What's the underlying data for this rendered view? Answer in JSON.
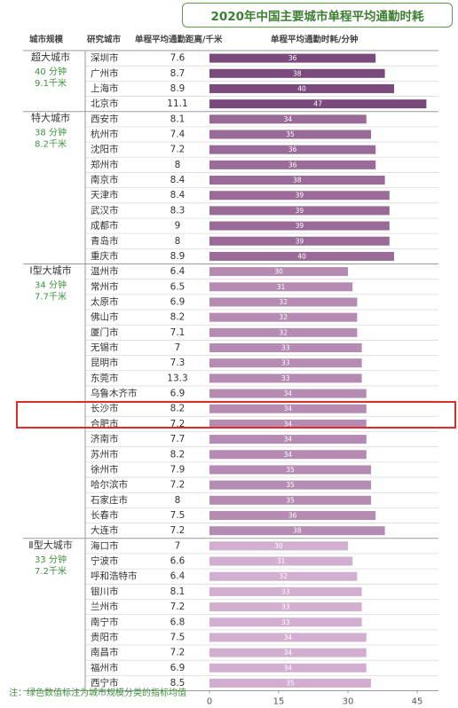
{
  "chart_data": {
    "type": "bar",
    "title": "2020年中国主要城市单程平均通勤时耗",
    "column_headers": {
      "tier": "城市规模",
      "city": "研究城市",
      "distance": "单程平均通勤距离/千米",
      "time": "单程平均通勤时耗/分钟"
    },
    "xlabel": "单程平均通勤时耗/分钟",
    "xlim": [
      0,
      50
    ],
    "xticks": [
      "0",
      "15",
      "30",
      "45"
    ],
    "note": "注：绿色数值标注为城市规模分类的指标均值",
    "highlighted_city": "合肥市",
    "groups": [
      {
        "name": "超大城市",
        "avg_time": "40 分钟",
        "avg_distance": "9.1千米",
        "color": "#7b4a7d",
        "cities": [
          {
            "city": "深圳市",
            "distance": "7.6",
            "time": 36
          },
          {
            "city": "广州市",
            "distance": "8.7",
            "time": 38
          },
          {
            "city": "上海市",
            "distance": "8.9",
            "time": 40
          },
          {
            "city": "北京市",
            "distance": "11.1",
            "time": 47
          }
        ]
      },
      {
        "name": "特大城市",
        "avg_time": "38 分钟",
        "avg_distance": "8.2千米",
        "color": "#9a6a98",
        "cities": [
          {
            "city": "西安市",
            "distance": "8.1",
            "time": 34
          },
          {
            "city": "杭州市",
            "distance": "7.4",
            "time": 35
          },
          {
            "city": "沈阳市",
            "distance": "7.2",
            "time": 36
          },
          {
            "city": "郑州市",
            "distance": "8",
            "time": 36
          },
          {
            "city": "南京市",
            "distance": "8.4",
            "time": 38
          },
          {
            "city": "天津市",
            "distance": "8.4",
            "time": 39
          },
          {
            "city": "武汉市",
            "distance": "8.3",
            "time": 39
          },
          {
            "city": "成都市",
            "distance": "9",
            "time": 39
          },
          {
            "city": "青岛市",
            "distance": "8",
            "time": 39
          },
          {
            "city": "重庆市",
            "distance": "8.9",
            "time": 40
          }
        ]
      },
      {
        "name": "Ⅰ型大城市",
        "avg_time": "34 分钟",
        "avg_distance": "7.7千米",
        "color": "#b58bb3",
        "cities": [
          {
            "city": "温州市",
            "distance": "6.4",
            "time": 30
          },
          {
            "city": "常州市",
            "distance": "6.5",
            "time": 31
          },
          {
            "city": "太原市",
            "distance": "6.9",
            "time": 32
          },
          {
            "city": "佛山市",
            "distance": "8.2",
            "time": 32
          },
          {
            "city": "厦门市",
            "distance": "7.1",
            "time": 32
          },
          {
            "city": "无锡市",
            "distance": "7",
            "time": 33
          },
          {
            "city": "昆明市",
            "distance": "7.3",
            "time": 33
          },
          {
            "city": "东莞市",
            "distance": "13.3",
            "time": 33
          },
          {
            "city": "乌鲁木齐市",
            "distance": "6.9",
            "time": 34
          },
          {
            "city": "长沙市",
            "distance": "8.2",
            "time": 34
          },
          {
            "city": "合肥市",
            "distance": "7.2",
            "time": 34
          },
          {
            "city": "济南市",
            "distance": "7.7",
            "time": 34
          },
          {
            "city": "苏州市",
            "distance": "8.2",
            "time": 34
          },
          {
            "city": "徐州市",
            "distance": "7.9",
            "time": 35
          },
          {
            "city": "哈尔滨市",
            "distance": "7.2",
            "time": 35
          },
          {
            "city": "石家庄市",
            "distance": "8",
            "time": 35
          },
          {
            "city": "长春市",
            "distance": "7.5",
            "time": 36
          },
          {
            "city": "大连市",
            "distance": "7.2",
            "time": 38
          }
        ]
      },
      {
        "name": "Ⅱ型大城市",
        "avg_time": "33 分钟",
        "avg_distance": "7.2千米",
        "color": "#d2aed0",
        "cities": [
          {
            "city": "海口市",
            "distance": "7",
            "time": 30
          },
          {
            "city": "宁波市",
            "distance": "6.6",
            "time": 31
          },
          {
            "city": "呼和浩特市",
            "distance": "6.4",
            "time": 32
          },
          {
            "city": "银川市",
            "distance": "8.1",
            "time": 33
          },
          {
            "city": "兰州市",
            "distance": "7.2",
            "time": 33
          },
          {
            "city": "南宁市",
            "distance": "6.8",
            "time": 33
          },
          {
            "city": "贵阳市",
            "distance": "7.5",
            "time": 34
          },
          {
            "city": "南昌市",
            "distance": "7.2",
            "time": 34
          },
          {
            "city": "福州市",
            "distance": "6.9",
            "time": 34
          },
          {
            "city": "西宁市",
            "distance": "8.5",
            "time": 35
          }
        ]
      }
    ]
  }
}
